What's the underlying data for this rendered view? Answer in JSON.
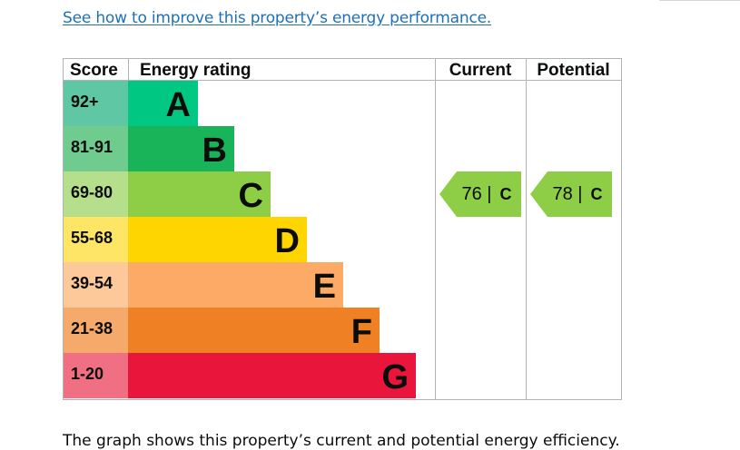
{
  "improve_link": "See how to improve this property’s energy performance.",
  "footer_text": "The graph shows this property’s current and potential energy efficiency.",
  "chart_data": {
    "type": "bar",
    "headers": {
      "score": "Score",
      "rating": "Energy rating",
      "current": "Current",
      "potential": "Potential"
    },
    "bands": [
      {
        "score": "92+",
        "band": "A",
        "band_color": "#00c781",
        "score_color": "#5fc7a3"
      },
      {
        "score": "81-91",
        "band": "B",
        "band_color": "#19b459",
        "score_color": "#6fcb8e"
      },
      {
        "score": "69-80",
        "band": "C",
        "band_color": "#8dce46",
        "score_color": "#b6df8c"
      },
      {
        "score": "55-68",
        "band": "D",
        "band_color": "#ffd500",
        "score_color": "#ffe566"
      },
      {
        "score": "39-54",
        "band": "E",
        "band_color": "#fcaa65",
        "score_color": "#fdc89a"
      },
      {
        "score": "21-38",
        "band": "F",
        "band_color": "#ef8023",
        "score_color": "#f5aa6c"
      },
      {
        "score": "1-20",
        "band": "G",
        "band_color": "#e9153b",
        "score_color": "#f06f83"
      }
    ],
    "current": {
      "value": 76,
      "band": "C",
      "color": "#8dce46"
    },
    "potential": {
      "value": 78,
      "band": "C",
      "color": "#8dce46"
    }
  }
}
